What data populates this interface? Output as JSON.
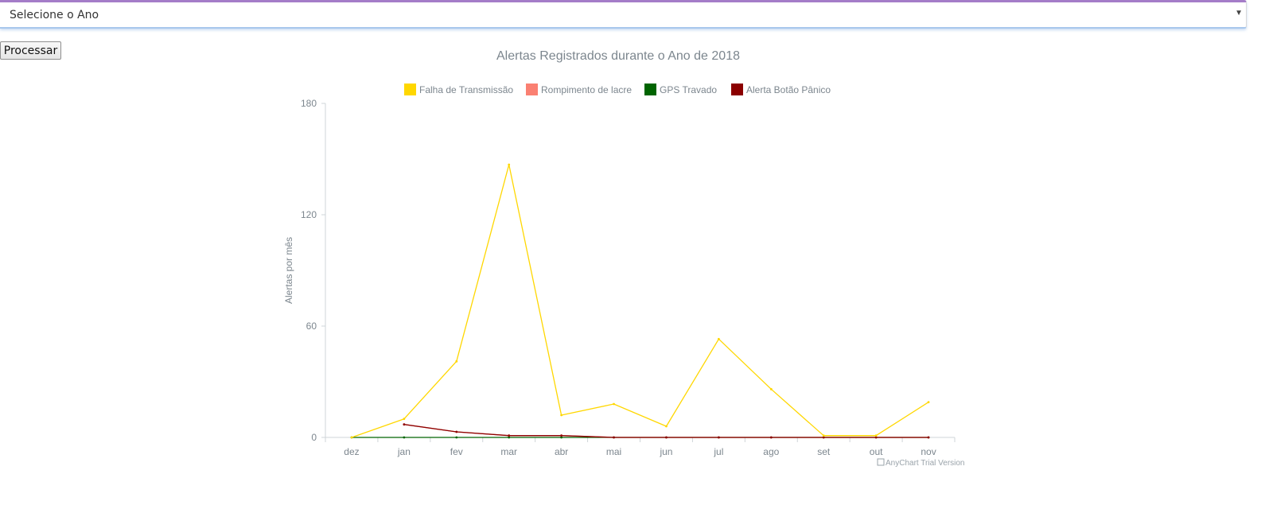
{
  "form": {
    "year_select_placeholder": "Selecione o Ano",
    "process_button_label": "Processar"
  },
  "chart_data": {
    "type": "line",
    "title": "Alertas Registrados durante o Ano de 2018",
    "ylabel": "Alertas por mês",
    "xlabel": "",
    "categories": [
      "dez",
      "jan",
      "fev",
      "mar",
      "abr",
      "mai",
      "jun",
      "jul",
      "ago",
      "set",
      "out",
      "nov"
    ],
    "ylim": [
      0,
      180
    ],
    "yticks": [
      0,
      60,
      120,
      180
    ],
    "legend_position": "top-center",
    "grid": false,
    "credit": "AnyChart Trial Version",
    "series": [
      {
        "name": "Falha de Transmissão",
        "color": "#FFD700",
        "values": [
          0,
          10,
          41,
          147,
          12,
          18,
          6,
          53,
          26,
          1,
          1,
          19
        ]
      },
      {
        "name": "Rompimento de lacre",
        "color": "#FA8072",
        "values": [
          null,
          7,
          3,
          1,
          1,
          0,
          0,
          0,
          0,
          0,
          0,
          0
        ]
      },
      {
        "name": "GPS Travado",
        "color": "#006400",
        "values": [
          0,
          0,
          0,
          0,
          0,
          0,
          0,
          0,
          0,
          0,
          0,
          0
        ]
      },
      {
        "name": "Alerta Botão Pânico",
        "color": "#8B0000",
        "values": [
          null,
          7,
          3,
          1,
          1,
          0,
          0,
          0,
          0,
          0,
          0,
          0
        ]
      }
    ]
  }
}
